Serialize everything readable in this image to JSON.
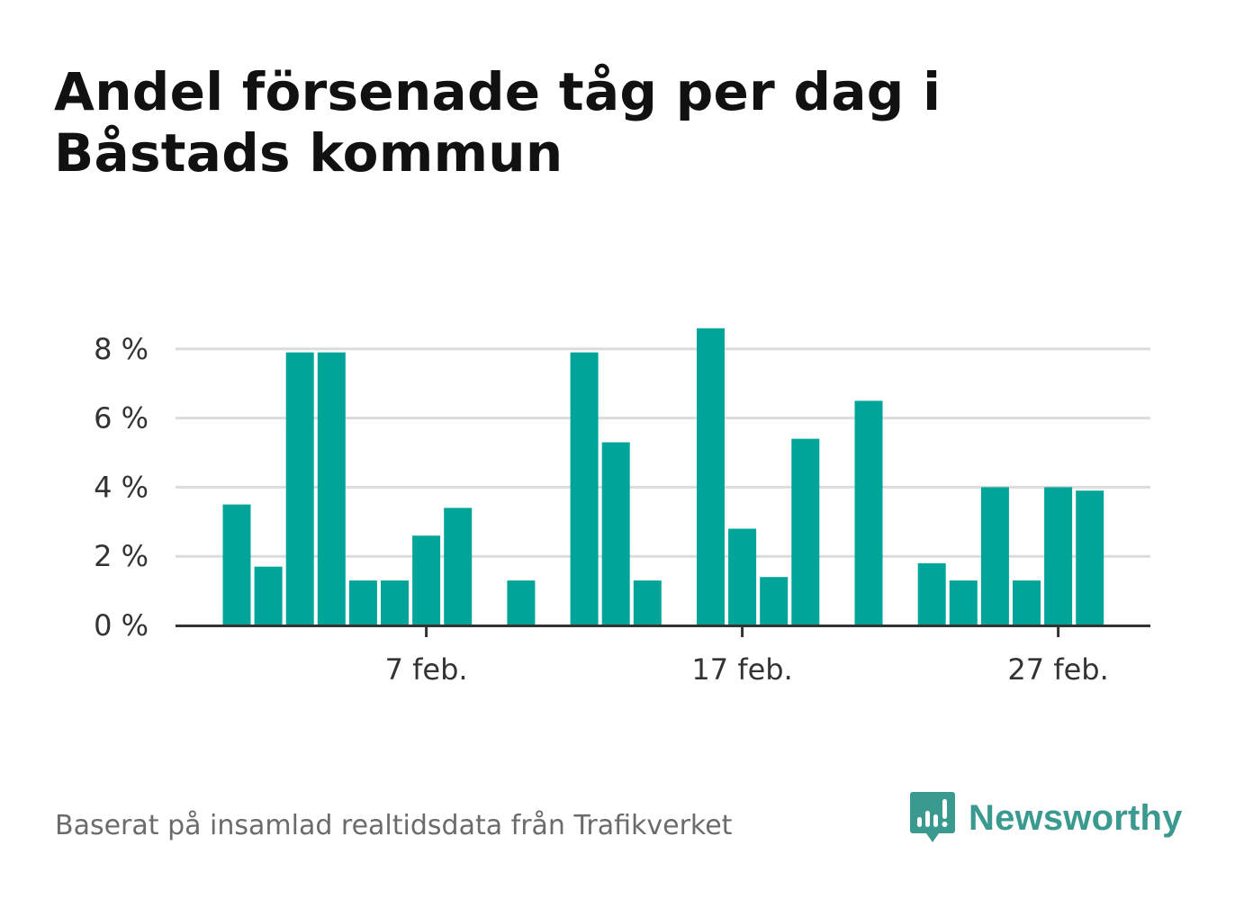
{
  "header": {
    "title": "Andel försenade tåg per dag i Båstads kommun"
  },
  "footer": {
    "source": "Baserat på insamlad realtidsdata från Trafikverket",
    "brand": "Newsworthy"
  },
  "colors": {
    "bar": "#00a499",
    "grid": "#dcdcdc",
    "axis": "#333333",
    "tick_label": "#333333",
    "brand": "#3a9a8f"
  },
  "chart_data": {
    "type": "bar",
    "title": "Andel försenade tåg per dag i Båstads kommun",
    "xlabel": "",
    "ylabel": "",
    "unit": "%",
    "ylim": [
      0,
      9
    ],
    "yticks": [
      0,
      2,
      4,
      6,
      8
    ],
    "ytick_labels": [
      "0 %",
      "2 %",
      "4 %",
      "6 %",
      "8 %"
    ],
    "xtick_labels": [
      {
        "date": "7 feb.",
        "label": "7 feb."
      },
      {
        "date": "17 feb.",
        "label": "17 feb."
      },
      {
        "date": "27 feb.",
        "label": "27 feb."
      }
    ],
    "grid": true,
    "legend": "none",
    "categories": [
      "1 feb.",
      "2 feb.",
      "3 feb.",
      "4 feb.",
      "5 feb.",
      "6 feb.",
      "7 feb.",
      "8 feb.",
      "9 feb.",
      "10 feb.",
      "11 feb.",
      "12 feb.",
      "13 feb.",
      "14 feb.",
      "15 feb.",
      "16 feb.",
      "17 feb.",
      "18 feb.",
      "19 feb.",
      "20 feb.",
      "21 feb.",
      "22 feb.",
      "23 feb.",
      "24 feb.",
      "25 feb.",
      "26 feb.",
      "27 feb.",
      "28 feb."
    ],
    "values": [
      3.5,
      1.7,
      7.9,
      7.9,
      1.3,
      1.3,
      2.6,
      3.4,
      null,
      1.3,
      null,
      7.9,
      5.3,
      1.3,
      null,
      8.6,
      2.8,
      1.4,
      5.4,
      null,
      6.5,
      null,
      1.8,
      1.3,
      4.0,
      1.3,
      4.0,
      3.9
    ]
  }
}
